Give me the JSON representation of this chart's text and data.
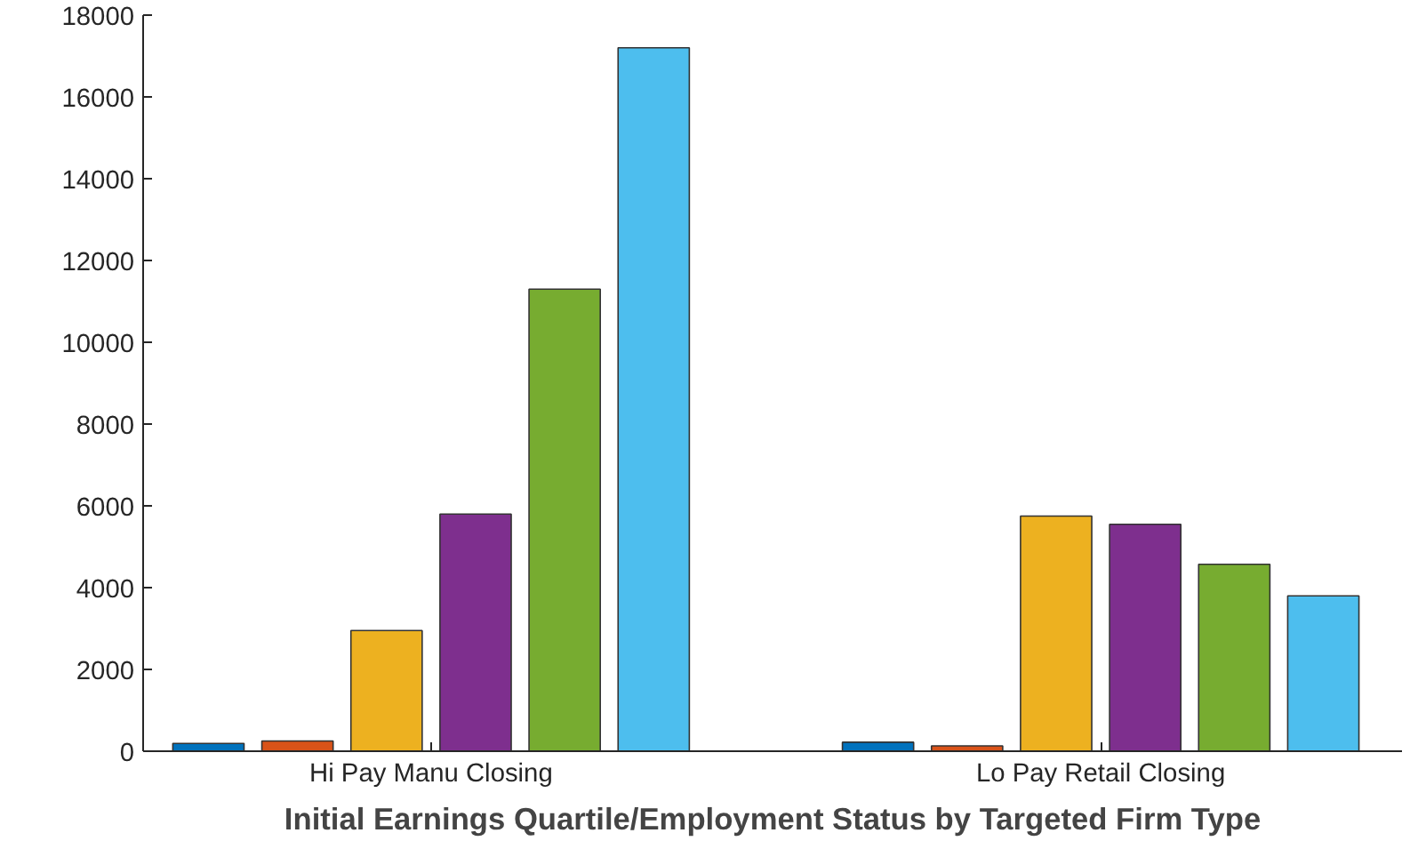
{
  "chart_data": {
    "type": "bar",
    "xlabel": "Initial Earnings Quartile/Employment Status by Targeted Firm Type",
    "categories": [
      "Hi Pay Manu Closing",
      "Lo Pay Retail Closing"
    ],
    "series": [
      {
        "color": "#0072bd",
        "values": [
          190,
          220
        ]
      },
      {
        "color": "#d95319",
        "values": [
          250,
          130
        ]
      },
      {
        "color": "#edb120",
        "values": [
          2950,
          5750
        ]
      },
      {
        "color": "#7e2f8e",
        "values": [
          5800,
          5550
        ]
      },
      {
        "color": "#77ac30",
        "values": [
          11300,
          4570
        ]
      },
      {
        "color": "#4dbeee",
        "values": [
          17200,
          3800
        ]
      }
    ],
    "ylim": [
      0,
      18000
    ],
    "yticks": [
      0,
      2000,
      4000,
      6000,
      8000,
      10000,
      12000,
      14000,
      16000,
      18000
    ],
    "grid": false
  }
}
